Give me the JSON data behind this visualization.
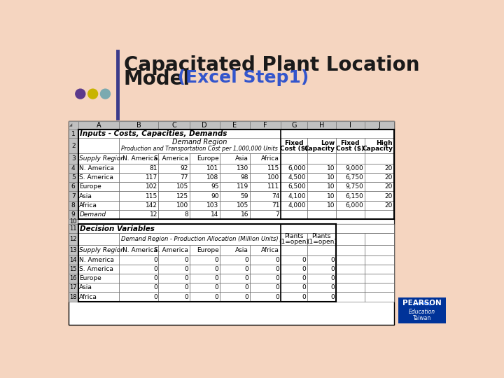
{
  "title_main": "Capacitated Plant Location",
  "title_sub": "Model",
  "title_excel": " (Excel Step1)",
  "background_color": "#F5D5C0",
  "dot_colors": [
    "#5B3A8C",
    "#C8B400",
    "#7BAAB0"
  ],
  "divider_color": "#3B3B8B",
  "section1_label": "Inputs - Costs, Capacities, Demands",
  "section2_label": "Decision Variables",
  "demand_region_label": "Demand Region",
  "prod_trans_label": "Production and Transportation Cost per 1,000,000 Units",
  "demand_alloc_label": "Demand Region - Production Allocation (Million Units)",
  "rows_data": [
    [
      "N. America",
      81,
      92,
      101,
      130,
      115,
      "6,000",
      10,
      "9,000",
      20
    ],
    [
      "S. America",
      117,
      77,
      108,
      98,
      100,
      "4,500",
      10,
      "6,750",
      20
    ],
    [
      "Europe",
      102,
      105,
      95,
      119,
      111,
      "6,500",
      10,
      "9,750",
      20
    ],
    [
      "Asia",
      115,
      125,
      90,
      59,
      74,
      "4,100",
      10,
      "6,150",
      20
    ],
    [
      "Africa",
      142,
      100,
      103,
      105,
      71,
      "4,000",
      10,
      "6,000",
      20
    ]
  ],
  "demand_row": [
    "Demand",
    12,
    8,
    14,
    16,
    7
  ],
  "pearson_bg": "#003399"
}
